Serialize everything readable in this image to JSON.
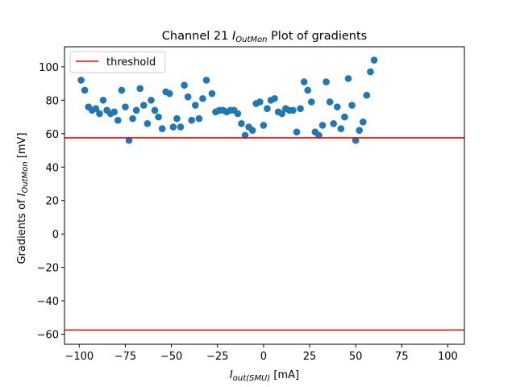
{
  "chart_data": {
    "type": "scatter",
    "title": {
      "prefix": "Channel 21 ",
      "var": "I",
      "sub": "OutMon",
      "suffix": " Plot of gradients"
    },
    "xlabel": {
      "var": "I",
      "sub": "out(SMU)",
      "suffix": " [mA]"
    },
    "ylabel": {
      "prefix": "Gradients of ",
      "var": "I",
      "sub": "OutMon",
      "suffix": " [mV]"
    },
    "xlim": [
      -108,
      109
    ],
    "ylim": [
      -66,
      112
    ],
    "xticks": [
      -100,
      -75,
      -50,
      -25,
      0,
      25,
      50,
      75,
      100
    ],
    "yticks": [
      -60,
      -40,
      -20,
      0,
      20,
      40,
      60,
      80,
      100
    ],
    "grid": false,
    "legend": {
      "placement": "top-left",
      "entries": [
        {
          "label": "threshold",
          "color": "#ff0000",
          "marker": "line"
        }
      ]
    },
    "thresholds": [
      57.5,
      -57.5
    ],
    "threshold_color": "#ff0000",
    "marker_color": "#1f77b4",
    "points": [
      [
        -99,
        92
      ],
      [
        -97,
        86
      ],
      [
        -95,
        76
      ],
      [
        -93,
        74
      ],
      [
        -91,
        75
      ],
      [
        -89,
        72
      ],
      [
        -87,
        80
      ],
      [
        -85,
        74
      ],
      [
        -83,
        72
      ],
      [
        -81,
        73
      ],
      [
        -79,
        68
      ],
      [
        -77,
        86
      ],
      [
        -75,
        76
      ],
      [
        -73,
        56
      ],
      [
        -71,
        69
      ],
      [
        -69,
        74
      ],
      [
        -67,
        87
      ],
      [
        -65,
        77
      ],
      [
        -63,
        66
      ],
      [
        -61,
        80
      ],
      [
        -59,
        74
      ],
      [
        -57,
        70
      ],
      [
        -55,
        63
      ],
      [
        -53,
        85
      ],
      [
        -51,
        84
      ],
      [
        -49,
        64
      ],
      [
        -47,
        69
      ],
      [
        -45,
        64
      ],
      [
        -43,
        89
      ],
      [
        -41,
        82
      ],
      [
        -39,
        68
      ],
      [
        -37,
        77
      ],
      [
        -35,
        69
      ],
      [
        -33,
        81
      ],
      [
        -31,
        92
      ],
      [
        -28,
        84
      ],
      [
        -26,
        73
      ],
      [
        -24,
        74
      ],
      [
        -22,
        74
      ],
      [
        -20,
        73
      ],
      [
        -18,
        74
      ],
      [
        -16,
        74
      ],
      [
        -14,
        72
      ],
      [
        -12,
        66
      ],
      [
        -10,
        59
      ],
      [
        -8,
        64
      ],
      [
        -6,
        62
      ],
      [
        -4,
        78
      ],
      [
        -2,
        79
      ],
      [
        0,
        65
      ],
      [
        2,
        75
      ],
      [
        4,
        80
      ],
      [
        6,
        81
      ],
      [
        8,
        73
      ],
      [
        10,
        72
      ],
      [
        12,
        75
      ],
      [
        14,
        74
      ],
      [
        16,
        74
      ],
      [
        18,
        61
      ],
      [
        20,
        75
      ],
      [
        22,
        91
      ],
      [
        24,
        86
      ],
      [
        26,
        79
      ],
      [
        28,
        61
      ],
      [
        30,
        59
      ],
      [
        32,
        65
      ],
      [
        34,
        91
      ],
      [
        36,
        79
      ],
      [
        38,
        66
      ],
      [
        40,
        76
      ],
      [
        42,
        63
      ],
      [
        44,
        70
      ],
      [
        46,
        93
      ],
      [
        48,
        77
      ],
      [
        50,
        56
      ],
      [
        52,
        62
      ],
      [
        54,
        67
      ],
      [
        56,
        83
      ],
      [
        58,
        97
      ],
      [
        60,
        104
      ]
    ]
  }
}
